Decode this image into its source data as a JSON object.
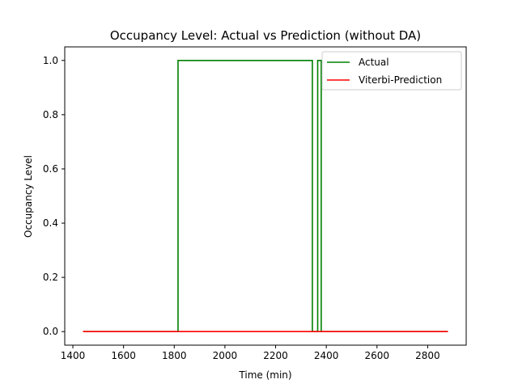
{
  "chart_data": {
    "type": "line",
    "title": "Occupancy Level: Actual vs Prediction (without DA)",
    "xlabel": "Time (min)",
    "ylabel": "Occupancy Level",
    "xlim": [
      1368,
      2952
    ],
    "ylim": [
      -0.05,
      1.05
    ],
    "xticks": [
      1400,
      1600,
      1800,
      2000,
      2200,
      2400,
      2600,
      2800
    ],
    "yticks": [
      0.0,
      0.2,
      0.4,
      0.6,
      0.8,
      1.0
    ],
    "xtick_labels": [
      "1400",
      "1600",
      "1800",
      "2000",
      "2200",
      "2400",
      "2600",
      "2800"
    ],
    "ytick_labels": [
      "0.0",
      "0.2",
      "0.4",
      "0.6",
      "0.8",
      "1.0"
    ],
    "grid": false,
    "legend_position": "top-right",
    "series": [
      {
        "name": "Actual",
        "color": "#008000",
        "step": true,
        "x": [
          1440,
          1815,
          1815,
          2345,
          2345,
          2366,
          2366,
          2380,
          2380,
          2880
        ],
        "y": [
          0,
          0,
          1,
          1,
          0,
          0,
          1,
          1,
          0,
          0
        ]
      },
      {
        "name": "Viterbi-Prediction",
        "color": "#ff0000",
        "step": false,
        "x": [
          1440,
          2880
        ],
        "y": [
          0,
          0
        ]
      }
    ]
  }
}
